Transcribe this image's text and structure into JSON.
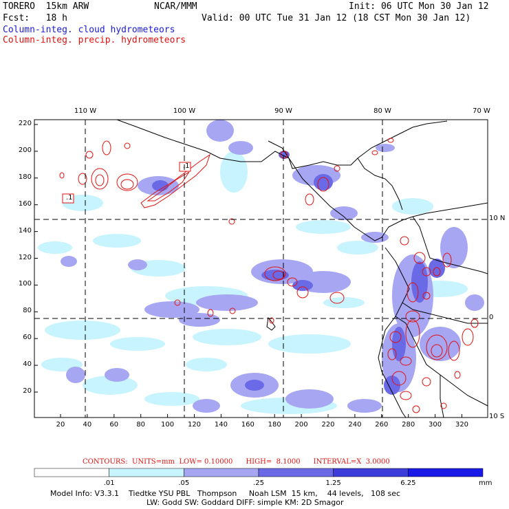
{
  "header": {
    "title": "TORERO  15km ARW",
    "org": "NCAR/MMM",
    "init": "Init: 06 UTC Mon 30 Jan 12",
    "fcst": "Fcst:   18 h",
    "valid": "Valid: 00 UTC Tue 31 Jan 12 (18 CST Mon 30 Jan 12)",
    "field1": "Column-integ. cloud hydrometeors",
    "field2": "Column-integ. precip. hydrometeors"
  },
  "map": {
    "lon_labels": [
      "110 W",
      "100 W",
      "90 W",
      "80 W",
      "70 W"
    ],
    "lat_labels": [
      "10 N",
      "0",
      "10 S"
    ],
    "y_ticks": [
      "220",
      "200",
      "180",
      "160",
      "140",
      "120",
      "100",
      "80",
      "60",
      "40",
      "20"
    ],
    "x_ticks": [
      "20",
      "40",
      "60",
      "80",
      "100",
      "120",
      "140",
      "160",
      "180",
      "200",
      "220",
      "240",
      "260",
      "280",
      "300",
      "320"
    ],
    "contour_labels": [
      ".1",
      ".1"
    ],
    "colors": {
      "ocean_bg": "#ffffff",
      "c1": "#c8f4ff",
      "c2": "#a6a6f2",
      "c3": "#6a6ae6",
      "c4": "#3c3cd8",
      "c5": "#1a1ae6",
      "precip": "#e01010"
    }
  },
  "contours_text": "CONTOURS:  UNITS=mm  LOW= 0.10000      HIGH=  8.1000      INTERVAL=X  3.0000",
  "colorbar": {
    "labels": [
      ".01",
      ".05",
      ".25",
      "1.25",
      "6.25"
    ],
    "unit": "mm",
    "colors": [
      "#ffffff",
      "#c8f4ff",
      "#a6a6f2",
      "#6a6ae6",
      "#3c3cd8",
      "#1a1ae6"
    ]
  },
  "model_info": {
    "line1": "Model Info: V3.3.1    Tiedtke YSU PBL   Thompson     Noah LSM  15 km,    44 levels,   108 sec",
    "line2": "LW: Godd SW: Goddard DIFF: simple KM: 2D Smagor"
  }
}
